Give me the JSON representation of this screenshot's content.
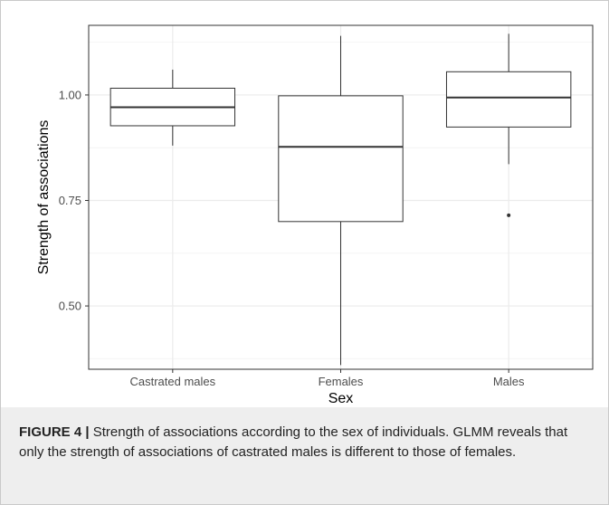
{
  "chart_data": {
    "type": "boxplot",
    "title": "",
    "xlabel": "Sex",
    "ylabel": "Strength of associations",
    "categories": [
      "Castrated males",
      "Females",
      "Males"
    ],
    "boxes": [
      {
        "category": "Castrated males",
        "whisker_low": 0.88,
        "q1": 0.927,
        "median": 0.971,
        "q3": 1.016,
        "whisker_high": 1.06,
        "outliers": []
      },
      {
        "category": "Females",
        "whisker_low": 0.36,
        "q1": 0.7,
        "median": 0.877,
        "q3": 0.998,
        "whisker_high": 1.14,
        "outliers": []
      },
      {
        "category": "Males",
        "whisker_low": 0.836,
        "q1": 0.924,
        "median": 0.994,
        "q3": 1.055,
        "whisker_high": 1.145,
        "outliers": [
          0.715
        ]
      }
    ],
    "yticks": [
      0.5,
      0.75,
      1.0
    ],
    "ytick_labels": [
      "0.50",
      "0.75",
      "1.00"
    ],
    "ylim": [
      0.35,
      1.165
    ],
    "grid": true,
    "colors": {
      "box_fill": "#ffffff",
      "box_stroke": "#333333",
      "grid_major": "#ebebeb",
      "grid_minor": "#f4f4f4"
    }
  },
  "caption": {
    "label": "FIGURE 4 |",
    "text": " Strength of associations according to the sex of individuals. GLMM reveals that only the strength of associations of castrated males is different to those of females."
  }
}
